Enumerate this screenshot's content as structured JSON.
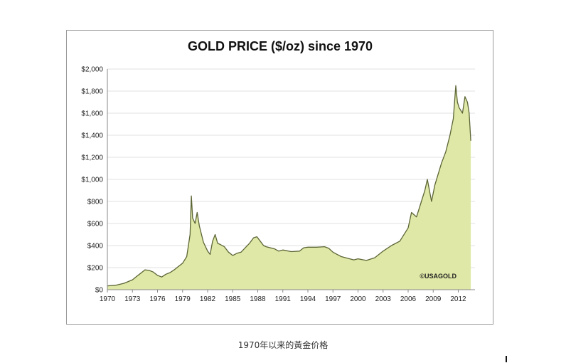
{
  "caption": "1970年以来的黃金价格",
  "chart_data": {
    "type": "area",
    "title": "GOLD PRICE ($/oz) since 1970",
    "xlabel": "",
    "ylabel": "",
    "xlim": [
      1970,
      2014
    ],
    "ylim": [
      0,
      2000
    ],
    "x_ticks": [
      "1970",
      "1973",
      "1976",
      "1979",
      "1982",
      "1985",
      "1988",
      "1991",
      "1994",
      "1997",
      "2000",
      "2003",
      "2006",
      "2009",
      "2012"
    ],
    "y_ticks": [
      "$0",
      "$200",
      "$400",
      "$600",
      "$800",
      "$1,000",
      "$1,200",
      "$1,400",
      "$1,600",
      "$1,800",
      "$2,000"
    ],
    "grid": "horizontal",
    "annotation": "©USAGOLD",
    "colors": {
      "fill": "#dfe8a6",
      "line": "#5c6636",
      "grid": "#e2e2e2",
      "axis": "#888888"
    },
    "series": [
      {
        "x": [
          1970,
          1971,
          1972,
          1973,
          1973.5,
          1974,
          1974.5,
          1975,
          1975.5,
          1976,
          1976.5,
          1977,
          1977.5,
          1978,
          1978.5,
          1979,
          1979.5,
          1979.9,
          1980.05,
          1980.2,
          1980.5,
          1980.75,
          1981,
          1981.5,
          1982,
          1982.3,
          1982.6,
          1982.9,
          1983.2,
          1983.5,
          1984,
          1984.5,
          1985,
          1985.5,
          1986,
          1986.5,
          1987,
          1987.5,
          1987.9,
          1988.3,
          1988.7,
          1989,
          1989.5,
          1990,
          1990.5,
          1991,
          1992,
          1993,
          1993.5,
          1994,
          1995,
          1996,
          1996.5,
          1997,
          1997.5,
          1998,
          1999,
          1999.5,
          2000,
          2001,
          2002,
          2003,
          2004,
          2005,
          2006,
          2006.4,
          2007,
          2008,
          2008.3,
          2008.8,
          2009.2,
          2010,
          2010.5,
          2011,
          2011.4,
          2011.7,
          2011.9,
          2012.1,
          2012.5,
          2012.8,
          2013.1,
          2013.3,
          2013.5
        ],
        "y": [
          35,
          40,
          58,
          90,
          120,
          150,
          180,
          175,
          160,
          130,
          115,
          140,
          155,
          180,
          210,
          240,
          300,
          500,
          850,
          650,
          600,
          700,
          580,
          430,
          350,
          320,
          440,
          500,
          420,
          410,
          390,
          340,
          310,
          330,
          340,
          380,
          420,
          470,
          480,
          440,
          400,
          390,
          380,
          370,
          350,
          360,
          345,
          350,
          380,
          385,
          385,
          390,
          375,
          340,
          320,
          300,
          280,
          270,
          280,
          265,
          290,
          350,
          400,
          440,
          560,
          700,
          660,
          900,
          1000,
          800,
          950,
          1150,
          1250,
          1400,
          1550,
          1850,
          1700,
          1650,
          1600,
          1750,
          1700,
          1600,
          1350
        ]
      }
    ]
  }
}
